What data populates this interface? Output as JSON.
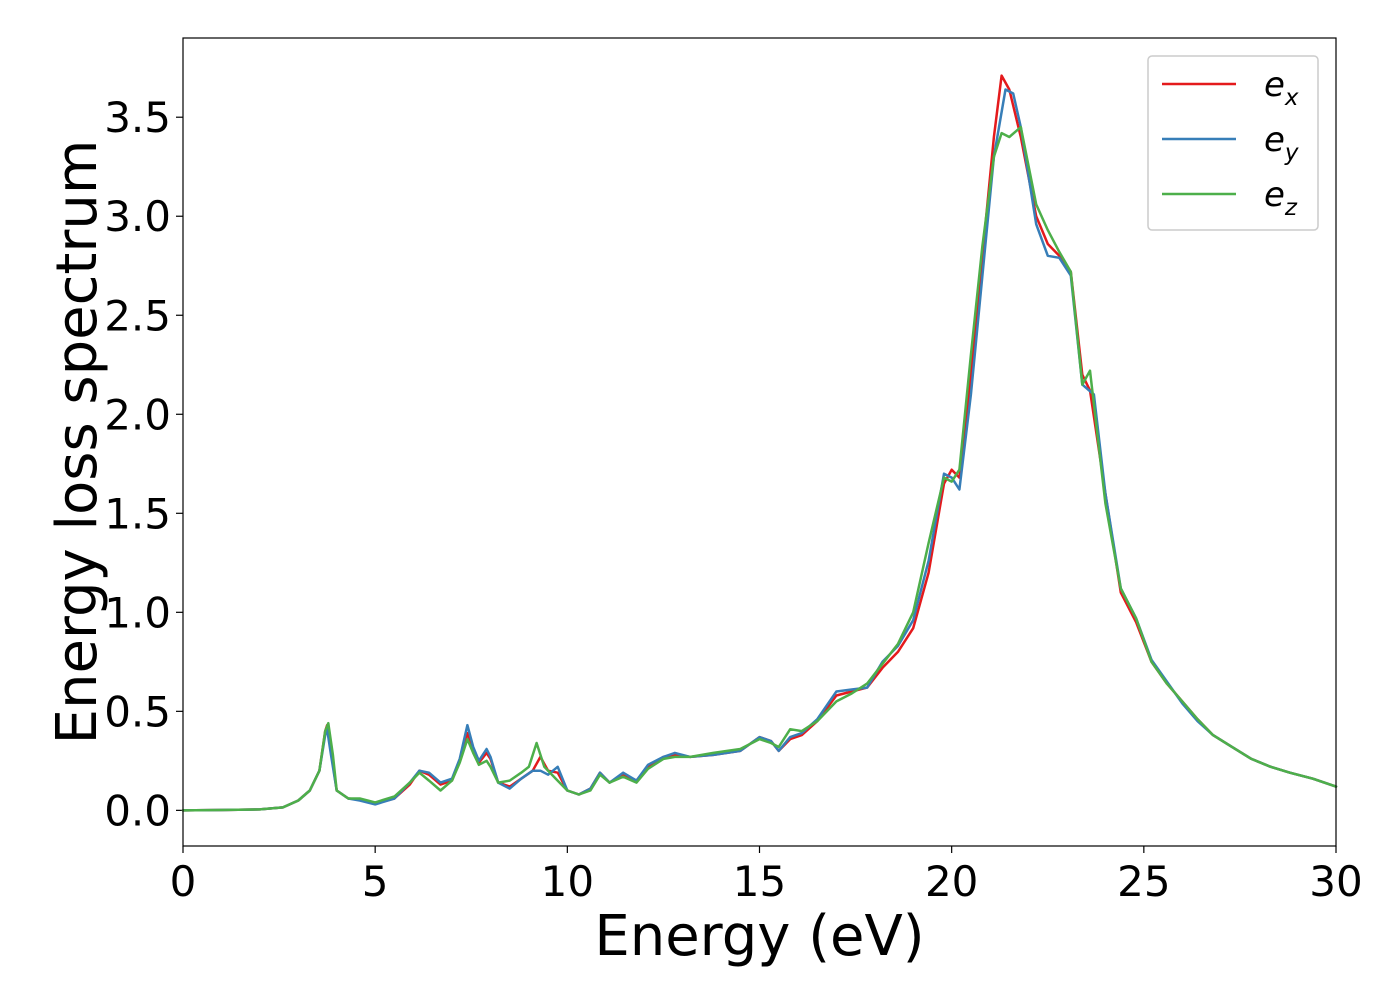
{
  "chart_data": {
    "type": "line",
    "title": "",
    "xlabel": "Energy (eV)",
    "ylabel": "Energy loss spectrum",
    "xlim": [
      0,
      30
    ],
    "ylim": [
      -0.18,
      3.9
    ],
    "xticks": [
      0,
      5,
      10,
      15,
      20,
      25,
      30
    ],
    "xtick_labels": [
      "0",
      "5",
      "10",
      "15",
      "20",
      "25",
      "30"
    ],
    "yticks": [
      0.0,
      0.5,
      1.0,
      1.5,
      2.0,
      2.5,
      3.0,
      3.5
    ],
    "ytick_labels": [
      "0.0",
      "0.5",
      "1.0",
      "1.5",
      "2.0",
      "2.5",
      "3.0",
      "3.5"
    ],
    "grid": false,
    "legend_position": "top-right",
    "series": [
      {
        "name": "e",
        "subscript": "x",
        "color": "#e41a1c",
        "points": [
          [
            0,
            0
          ],
          [
            1,
            0.002
          ],
          [
            2,
            0.005
          ],
          [
            2.6,
            0.015
          ],
          [
            3.0,
            0.05
          ],
          [
            3.3,
            0.1
          ],
          [
            3.55,
            0.2
          ],
          [
            3.7,
            0.4
          ],
          [
            3.75,
            0.43
          ],
          [
            3.85,
            0.3
          ],
          [
            4.0,
            0.1
          ],
          [
            4.3,
            0.06
          ],
          [
            4.6,
            0.055
          ],
          [
            5.0,
            0.035
          ],
          [
            5.5,
            0.06
          ],
          [
            5.9,
            0.13
          ],
          [
            6.15,
            0.2
          ],
          [
            6.4,
            0.18
          ],
          [
            6.7,
            0.13
          ],
          [
            7.0,
            0.15
          ],
          [
            7.2,
            0.25
          ],
          [
            7.4,
            0.39
          ],
          [
            7.55,
            0.3
          ],
          [
            7.7,
            0.24
          ],
          [
            7.9,
            0.29
          ],
          [
            8.0,
            0.26
          ],
          [
            8.2,
            0.14
          ],
          [
            8.5,
            0.12
          ],
          [
            8.8,
            0.16
          ],
          [
            9.1,
            0.2
          ],
          [
            9.3,
            0.27
          ],
          [
            9.5,
            0.2
          ],
          [
            9.75,
            0.19
          ],
          [
            10.0,
            0.1
          ],
          [
            10.3,
            0.08
          ],
          [
            10.6,
            0.11
          ],
          [
            10.85,
            0.19
          ],
          [
            11.1,
            0.14
          ],
          [
            11.45,
            0.18
          ],
          [
            11.8,
            0.15
          ],
          [
            12.1,
            0.22
          ],
          [
            12.5,
            0.27
          ],
          [
            12.8,
            0.28
          ],
          [
            13.2,
            0.27
          ],
          [
            13.8,
            0.28
          ],
          [
            14.5,
            0.3
          ],
          [
            15.0,
            0.37
          ],
          [
            15.3,
            0.35
          ],
          [
            15.5,
            0.3
          ],
          [
            15.8,
            0.36
          ],
          [
            16.1,
            0.38
          ],
          [
            16.5,
            0.45
          ],
          [
            17.0,
            0.58
          ],
          [
            17.4,
            0.6
          ],
          [
            17.8,
            0.62
          ],
          [
            18.2,
            0.72
          ],
          [
            18.6,
            0.8
          ],
          [
            19.0,
            0.92
          ],
          [
            19.4,
            1.2
          ],
          [
            19.8,
            1.65
          ],
          [
            20.0,
            1.72
          ],
          [
            20.2,
            1.68
          ],
          [
            20.5,
            2.2
          ],
          [
            20.8,
            2.8
          ],
          [
            21.1,
            3.4
          ],
          [
            21.3,
            3.71
          ],
          [
            21.5,
            3.64
          ],
          [
            21.8,
            3.4
          ],
          [
            22.2,
            3.0
          ],
          [
            22.5,
            2.86
          ],
          [
            22.8,
            2.8
          ],
          [
            23.1,
            2.72
          ],
          [
            23.4,
            2.2
          ],
          [
            23.6,
            2.12
          ],
          [
            24.0,
            1.6
          ],
          [
            24.4,
            1.1
          ],
          [
            24.8,
            0.95
          ],
          [
            25.2,
            0.75
          ],
          [
            25.6,
            0.64
          ],
          [
            26.0,
            0.55
          ],
          [
            26.4,
            0.46
          ],
          [
            26.8,
            0.38
          ],
          [
            27.3,
            0.32
          ],
          [
            27.8,
            0.26
          ],
          [
            28.3,
            0.22
          ],
          [
            28.8,
            0.19
          ],
          [
            29.4,
            0.16
          ],
          [
            30.0,
            0.12
          ]
        ]
      },
      {
        "name": "e",
        "subscript": "y",
        "color": "#377eb8",
        "points": [
          [
            0,
            0
          ],
          [
            1,
            0.002
          ],
          [
            2,
            0.005
          ],
          [
            2.6,
            0.015
          ],
          [
            3.0,
            0.05
          ],
          [
            3.3,
            0.1
          ],
          [
            3.55,
            0.2
          ],
          [
            3.7,
            0.38
          ],
          [
            3.75,
            0.41
          ],
          [
            3.85,
            0.28
          ],
          [
            4.0,
            0.1
          ],
          [
            4.3,
            0.06
          ],
          [
            4.6,
            0.05
          ],
          [
            5.0,
            0.03
          ],
          [
            5.5,
            0.06
          ],
          [
            5.9,
            0.14
          ],
          [
            6.15,
            0.2
          ],
          [
            6.4,
            0.19
          ],
          [
            6.7,
            0.14
          ],
          [
            7.0,
            0.16
          ],
          [
            7.2,
            0.26
          ],
          [
            7.4,
            0.43
          ],
          [
            7.55,
            0.32
          ],
          [
            7.7,
            0.25
          ],
          [
            7.9,
            0.31
          ],
          [
            8.0,
            0.27
          ],
          [
            8.2,
            0.14
          ],
          [
            8.5,
            0.11
          ],
          [
            8.8,
            0.16
          ],
          [
            9.1,
            0.2
          ],
          [
            9.3,
            0.2
          ],
          [
            9.5,
            0.18
          ],
          [
            9.75,
            0.22
          ],
          [
            10.0,
            0.1
          ],
          [
            10.3,
            0.08
          ],
          [
            10.6,
            0.11
          ],
          [
            10.85,
            0.19
          ],
          [
            11.1,
            0.14
          ],
          [
            11.45,
            0.19
          ],
          [
            11.8,
            0.15
          ],
          [
            12.1,
            0.23
          ],
          [
            12.5,
            0.27
          ],
          [
            12.8,
            0.29
          ],
          [
            13.2,
            0.27
          ],
          [
            13.8,
            0.28
          ],
          [
            14.5,
            0.3
          ],
          [
            15.0,
            0.37
          ],
          [
            15.3,
            0.35
          ],
          [
            15.5,
            0.3
          ],
          [
            15.8,
            0.37
          ],
          [
            16.1,
            0.39
          ],
          [
            16.5,
            0.46
          ],
          [
            17.0,
            0.6
          ],
          [
            17.4,
            0.61
          ],
          [
            17.8,
            0.62
          ],
          [
            18.2,
            0.75
          ],
          [
            18.6,
            0.83
          ],
          [
            19.0,
            0.96
          ],
          [
            19.4,
            1.26
          ],
          [
            19.8,
            1.7
          ],
          [
            20.0,
            1.68
          ],
          [
            20.2,
            1.62
          ],
          [
            20.5,
            2.1
          ],
          [
            20.8,
            2.7
          ],
          [
            21.1,
            3.3
          ],
          [
            21.4,
            3.64
          ],
          [
            21.6,
            3.62
          ],
          [
            21.8,
            3.45
          ],
          [
            22.2,
            2.96
          ],
          [
            22.5,
            2.8
          ],
          [
            22.8,
            2.79
          ],
          [
            23.1,
            2.7
          ],
          [
            23.4,
            2.15
          ],
          [
            23.7,
            2.1
          ],
          [
            24.0,
            1.6
          ],
          [
            24.4,
            1.12
          ],
          [
            24.8,
            0.97
          ],
          [
            25.2,
            0.76
          ],
          [
            25.6,
            0.65
          ],
          [
            26.0,
            0.54
          ],
          [
            26.4,
            0.45
          ],
          [
            26.8,
            0.38
          ],
          [
            27.3,
            0.32
          ],
          [
            27.8,
            0.26
          ],
          [
            28.3,
            0.22
          ],
          [
            28.8,
            0.19
          ],
          [
            29.4,
            0.16
          ],
          [
            30.0,
            0.12
          ]
        ]
      },
      {
        "name": "e",
        "subscript": "z",
        "color": "#4daf4a",
        "points": [
          [
            0,
            0
          ],
          [
            1,
            0.002
          ],
          [
            2,
            0.005
          ],
          [
            2.6,
            0.015
          ],
          [
            3.0,
            0.05
          ],
          [
            3.3,
            0.1
          ],
          [
            3.55,
            0.2
          ],
          [
            3.7,
            0.4
          ],
          [
            3.78,
            0.44
          ],
          [
            3.9,
            0.28
          ],
          [
            4.0,
            0.1
          ],
          [
            4.3,
            0.06
          ],
          [
            4.6,
            0.06
          ],
          [
            5.0,
            0.04
          ],
          [
            5.5,
            0.07
          ],
          [
            5.9,
            0.14
          ],
          [
            6.15,
            0.19
          ],
          [
            6.4,
            0.15
          ],
          [
            6.7,
            0.1
          ],
          [
            7.0,
            0.15
          ],
          [
            7.2,
            0.24
          ],
          [
            7.4,
            0.36
          ],
          [
            7.55,
            0.29
          ],
          [
            7.7,
            0.23
          ],
          [
            7.9,
            0.25
          ],
          [
            8.0,
            0.22
          ],
          [
            8.2,
            0.14
          ],
          [
            8.5,
            0.15
          ],
          [
            8.8,
            0.19
          ],
          [
            9.0,
            0.22
          ],
          [
            9.2,
            0.34
          ],
          [
            9.4,
            0.22
          ],
          [
            9.7,
            0.16
          ],
          [
            10.0,
            0.1
          ],
          [
            10.3,
            0.08
          ],
          [
            10.6,
            0.1
          ],
          [
            10.85,
            0.18
          ],
          [
            11.1,
            0.14
          ],
          [
            11.45,
            0.17
          ],
          [
            11.8,
            0.14
          ],
          [
            12.1,
            0.21
          ],
          [
            12.5,
            0.26
          ],
          [
            12.8,
            0.27
          ],
          [
            13.2,
            0.27
          ],
          [
            13.8,
            0.29
          ],
          [
            14.5,
            0.31
          ],
          [
            15.0,
            0.36
          ],
          [
            15.3,
            0.34
          ],
          [
            15.5,
            0.32
          ],
          [
            15.8,
            0.41
          ],
          [
            16.1,
            0.4
          ],
          [
            16.5,
            0.45
          ],
          [
            17.0,
            0.55
          ],
          [
            17.4,
            0.59
          ],
          [
            17.8,
            0.64
          ],
          [
            18.2,
            0.74
          ],
          [
            18.6,
            0.84
          ],
          [
            19.0,
            1.0
          ],
          [
            19.4,
            1.35
          ],
          [
            19.8,
            1.68
          ],
          [
            20.0,
            1.66
          ],
          [
            20.2,
            1.72
          ],
          [
            20.5,
            2.3
          ],
          [
            20.8,
            2.85
          ],
          [
            21.1,
            3.3
          ],
          [
            21.3,
            3.42
          ],
          [
            21.5,
            3.4
          ],
          [
            21.8,
            3.45
          ],
          [
            22.2,
            3.06
          ],
          [
            22.5,
            2.93
          ],
          [
            22.8,
            2.82
          ],
          [
            23.1,
            2.72
          ],
          [
            23.4,
            2.15
          ],
          [
            23.6,
            2.22
          ],
          [
            24.0,
            1.55
          ],
          [
            24.4,
            1.12
          ],
          [
            24.8,
            0.97
          ],
          [
            25.2,
            0.75
          ],
          [
            25.6,
            0.64
          ],
          [
            26.0,
            0.55
          ],
          [
            26.4,
            0.46
          ],
          [
            26.8,
            0.38
          ],
          [
            27.3,
            0.32
          ],
          [
            27.8,
            0.26
          ],
          [
            28.3,
            0.22
          ],
          [
            28.8,
            0.19
          ],
          [
            29.4,
            0.16
          ],
          [
            30.0,
            0.12
          ]
        ]
      }
    ]
  }
}
